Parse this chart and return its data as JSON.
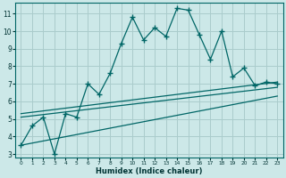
{
  "xlabel": "Humidex (Indice chaleur)",
  "background_color": "#cce8e8",
  "grid_color": "#aacccc",
  "line_color": "#006666",
  "xlim": [
    -0.5,
    23.5
  ],
  "ylim": [
    2.8,
    11.6
  ],
  "yticks": [
    3,
    4,
    5,
    6,
    7,
    8,
    9,
    10,
    11
  ],
  "xticks": [
    0,
    1,
    2,
    3,
    4,
    5,
    6,
    7,
    8,
    9,
    10,
    11,
    12,
    13,
    14,
    15,
    16,
    17,
    18,
    19,
    20,
    21,
    22,
    23
  ],
  "main_x": [
    0,
    1,
    2,
    3,
    4,
    5,
    6,
    7,
    8,
    9,
    10,
    11,
    12,
    13,
    14,
    15,
    16,
    17,
    18,
    19,
    20,
    21,
    22,
    23
  ],
  "main_y": [
    3.5,
    4.6,
    5.1,
    3.0,
    5.3,
    5.1,
    7.0,
    6.4,
    7.6,
    9.3,
    10.8,
    9.5,
    10.2,
    9.7,
    11.3,
    11.2,
    9.8,
    8.4,
    10.0,
    7.4,
    7.9,
    6.9,
    7.1,
    7.0
  ],
  "line1_x": [
    0,
    23
  ],
  "line1_y": [
    3.5,
    6.3
  ],
  "line2_x": [
    0,
    23
  ],
  "line2_y": [
    5.1,
    6.8
  ],
  "line3_x": [
    0,
    23
  ],
  "line3_y": [
    5.3,
    7.1
  ]
}
